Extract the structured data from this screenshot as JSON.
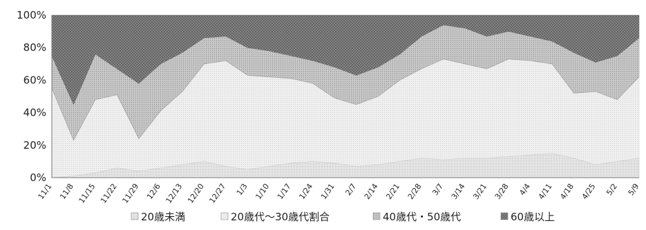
{
  "chart_data": {
    "type": "area",
    "stacked": true,
    "normalized_percent": true,
    "x_tick_labels": [
      "11/1",
      "11/8",
      "11/15",
      "11/22",
      "11/29",
      "12/6",
      "12/13",
      "12/20",
      "12/27",
      "1/3",
      "1/10",
      "1/17",
      "1/24",
      "1/31",
      "2/7",
      "2/14",
      "2/21",
      "2/28",
      "3/7",
      "3/14",
      "3/21",
      "3/28",
      "4/4",
      "4/11",
      "4/18",
      "4/25",
      "5/2",
      "5/9"
    ],
    "y_tick_labels": [
      "0%",
      "20%",
      "40%",
      "60%",
      "80%",
      "100%"
    ],
    "ylim": [
      0,
      100
    ],
    "grid": false,
    "legend_position": "bottom",
    "series": [
      {
        "name": "20歳未満",
        "values": [
          0,
          1,
          3,
          6,
          4,
          6,
          8,
          10,
          7,
          5,
          7,
          9,
          10,
          9,
          7,
          8,
          10,
          12,
          11,
          12,
          12,
          13,
          14,
          15,
          12,
          8,
          10,
          12
        ]
      },
      {
        "name": "20歳代〜30歳代割合",
        "values": [
          55,
          22,
          45,
          45,
          20,
          35,
          45,
          60,
          65,
          58,
          55,
          52,
          48,
          40,
          38,
          42,
          50,
          55,
          62,
          58,
          55,
          60,
          58,
          55,
          40,
          45,
          38,
          50
        ]
      },
      {
        "name": "40歳代・50歳代",
        "values": [
          20,
          22,
          28,
          16,
          34,
          29,
          24,
          16,
          15,
          17,
          16,
          14,
          14,
          19,
          18,
          18,
          16,
          20,
          21,
          22,
          20,
          17,
          15,
          14,
          25,
          18,
          27,
          24
        ]
      },
      {
        "name": "60歳以上",
        "values": [
          25,
          55,
          24,
          33,
          42,
          30,
          23,
          14,
          13,
          20,
          22,
          25,
          28,
          32,
          37,
          32,
          24,
          13,
          6,
          8,
          13,
          10,
          13,
          16,
          23,
          29,
          25,
          14
        ]
      }
    ],
    "colors": {
      "series_20_under": "#e6e6e6",
      "series_20_30": "#ededed",
      "series_40_50": "#c2c2c2",
      "series_60_plus": "#8c8c8c",
      "axis": "#777777",
      "text": "#222222"
    }
  }
}
